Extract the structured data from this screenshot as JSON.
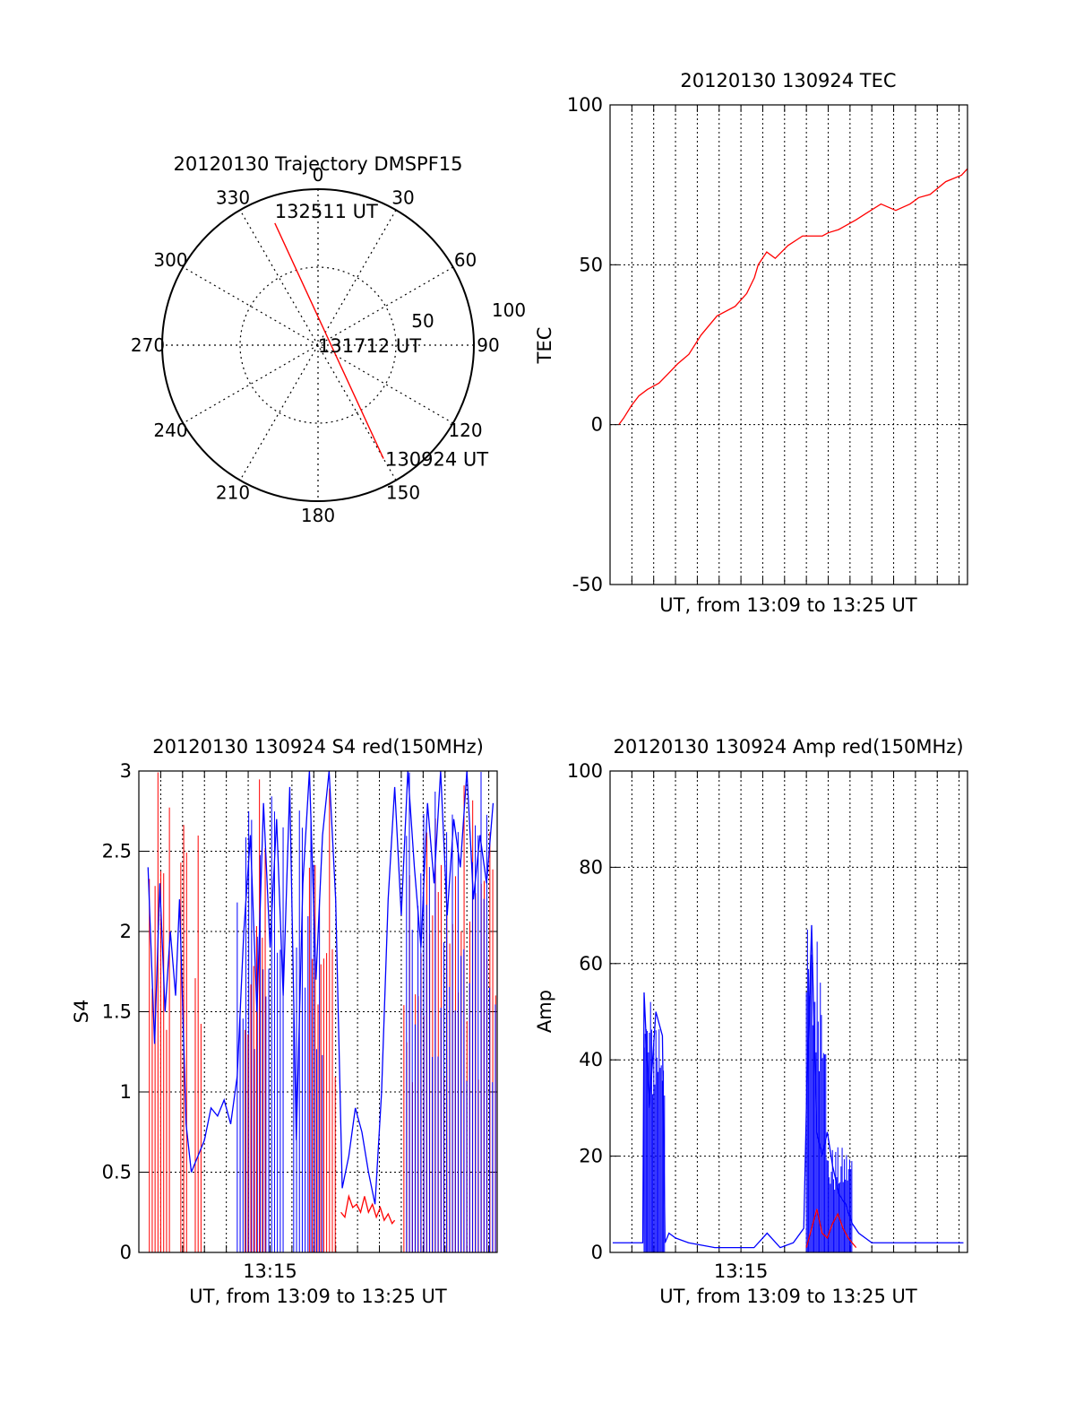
{
  "colors": {
    "red": "#ff0000",
    "blue": "#0000ff",
    "axis": "#000000",
    "grid": "#000000"
  },
  "chart_data": [
    {
      "id": "trajectory",
      "type": "polar",
      "title": "20120130 Trajectory DMSPF15",
      "azimuth_ticks": [
        "0",
        "30",
        "60",
        "90",
        "120",
        "150",
        "180",
        "210",
        "240",
        "270",
        "300",
        "330"
      ],
      "radial_tick_labels": [
        "50",
        "100"
      ],
      "rlim": [
        0,
        100
      ],
      "grid": true,
      "series": [
        {
          "color": "red",
          "points": [
            {
              "az": 340.5,
              "r": 83
            },
            {
              "az": 150,
              "r": 84
            }
          ]
        }
      ],
      "annotations": [
        {
          "text": "132511 UT",
          "az": 340.5,
          "r": 83
        },
        {
          "text": "131712 UT",
          "az": 0,
          "r": 0
        },
        {
          "text": "130924 UT",
          "az": 150,
          "r": 84
        }
      ]
    },
    {
      "id": "tec",
      "type": "line",
      "title": "20120130 130924 TEC",
      "xlabel": "UT, from 13:09 to 13:25 UT",
      "ylabel": "TEC",
      "xlim": [
        13.15,
        13.4231
      ],
      "ylim": [
        -50,
        100
      ],
      "yticks": [
        "-50",
        "0",
        "50",
        "100"
      ],
      "grid": true,
      "series": [
        {
          "color": "red",
          "x": [
            13.1567,
            13.1603,
            13.1664,
            13.172,
            13.1785,
            13.1874,
            13.1946,
            13.2016,
            13.2102,
            13.2195,
            13.2317,
            13.2456,
            13.2544,
            13.2603,
            13.2632,
            13.2697,
            13.2762,
            13.2859,
            13.2971,
            13.3122,
            13.3166,
            13.3246,
            13.3377,
            13.3453,
            13.357,
            13.3683,
            13.3792,
            13.3858,
            13.3945,
            13.4065,
            13.4185,
            13.423
          ],
          "y": [
            0,
            2,
            6,
            9,
            11,
            13,
            16,
            19,
            22,
            28,
            34,
            37,
            41,
            46,
            50,
            54,
            52,
            56,
            59,
            59,
            60,
            61,
            64,
            66,
            69,
            67,
            69,
            71,
            72,
            76,
            78,
            80
          ]
        }
      ]
    },
    {
      "id": "s4",
      "type": "line",
      "title": "20120130 130924 S4 red(150MHz)",
      "xlabel": "UT, from 13:09 to 13:25 UT",
      "ylabel": "S4",
      "xlim": [
        13.15,
        13.4231
      ],
      "ylim": [
        0,
        3
      ],
      "xticks": [
        "13:15"
      ],
      "xtick_values": [
        13.25
      ],
      "yticks": [
        "0",
        "0.5",
        "1",
        "1.5",
        "2",
        "2.5",
        "3"
      ],
      "grid": true,
      "series": [
        {
          "color": "blue",
          "x": [
            13.157,
            13.162,
            13.166,
            13.17,
            13.174,
            13.178,
            13.181,
            13.186,
            13.19,
            13.195,
            13.2,
            13.205,
            13.21,
            13.215,
            13.22,
            13.225,
            13.23,
            13.235,
            13.24,
            13.245,
            13.25,
            13.255,
            13.26,
            13.265,
            13.27,
            13.275,
            13.28,
            13.285,
            13.29,
            13.295,
            13.3,
            13.305,
            13.31,
            13.315,
            13.32,
            13.325,
            13.33,
            13.335,
            13.34,
            13.345,
            13.35,
            13.355,
            13.36,
            13.365,
            13.37,
            13.375,
            13.38,
            13.385,
            13.39,
            13.395,
            13.4,
            13.405,
            13.41,
            13.415,
            13.42
          ],
          "y": [
            2.4,
            1.3,
            2.3,
            1.5,
            2.0,
            1.6,
            2.2,
            0.8,
            0.5,
            0.6,
            0.7,
            0.9,
            0.85,
            0.95,
            0.8,
            1.1,
            2.0,
            2.6,
            1.5,
            2.8,
            1.9,
            2.7,
            1.6,
            2.9,
            0.7,
            2.3,
            3.0,
            1.7,
            2.6,
            3.0,
            2.2,
            0.4,
            0.6,
            0.9,
            0.75,
            0.5,
            0.3,
            1.0,
            2.2,
            2.9,
            2.1,
            3.0,
            2.4,
            1.9,
            2.8,
            2.3,
            3.0,
            2.1,
            2.7,
            2.4,
            3.0,
            2.2,
            2.6,
            2.3,
            2.8
          ]
        },
        {
          "color": "red",
          "x": [
            13.304,
            13.307,
            13.31,
            13.313,
            13.316,
            13.319,
            13.322,
            13.325,
            13.328,
            13.331,
            13.334,
            13.337,
            13.34,
            13.343,
            13.345
          ],
          "y": [
            0.25,
            0.22,
            0.35,
            0.28,
            0.3,
            0.25,
            0.35,
            0.25,
            0.3,
            0.22,
            0.28,
            0.2,
            0.24,
            0.18,
            0.2
          ]
        }
      ],
      "spike_bands": [
        {
          "color": "red",
          "x_start": 13.158,
          "x_end": 13.175
        },
        {
          "color": "red",
          "x_start": 13.182,
          "x_end": 13.188
        },
        {
          "color": "red",
          "x_start": 13.193,
          "x_end": 13.199
        },
        {
          "color": "blue",
          "x_start": 13.225,
          "x_end": 13.26
        },
        {
          "color": "red",
          "x_start": 13.231,
          "x_end": 13.248
        },
        {
          "color": "blue",
          "x_start": 13.268,
          "x_end": 13.29
        },
        {
          "color": "red",
          "x_start": 13.28,
          "x_end": 13.3
        },
        {
          "color": "red",
          "x_start": 13.352,
          "x_end": 13.4231
        },
        {
          "color": "blue",
          "x_start": 13.354,
          "x_end": 13.4231
        }
      ]
    },
    {
      "id": "amp",
      "type": "line",
      "title": "20120130 130924 Amp red(150MHz)",
      "xlabel": "UT, from 13:09 to 13:25 UT",
      "ylabel": "Amp",
      "xlim": [
        13.15,
        13.4231
      ],
      "ylim": [
        0,
        100
      ],
      "xticks": [
        "13:15"
      ],
      "xtick_values": [
        13.25
      ],
      "yticks": [
        "0",
        "20",
        "40",
        "60",
        "80",
        "100"
      ],
      "grid": true,
      "series": [
        {
          "color": "blue",
          "x": [
            13.152,
            13.17,
            13.175,
            13.176,
            13.18,
            13.185,
            13.19,
            13.192,
            13.195,
            13.2,
            13.21,
            13.23,
            13.26,
            13.27,
            13.28,
            13.29,
            13.298,
            13.3,
            13.304,
            13.306,
            13.308,
            13.312,
            13.316,
            13.32,
            13.325,
            13.33,
            13.335,
            13.34,
            13.35,
            13.37,
            13.4,
            13.42
          ],
          "y": [
            2,
            2,
            2,
            54,
            30,
            50,
            45,
            2,
            4,
            3,
            2,
            1,
            1,
            4,
            1,
            2,
            5,
            30,
            68,
            45,
            25,
            20,
            25,
            18,
            12,
            10,
            6,
            4,
            2,
            2,
            2,
            2
          ]
        },
        {
          "color": "red",
          "x": [
            13.3,
            13.304,
            13.308,
            13.312,
            13.316,
            13.32,
            13.324,
            13.328,
            13.332,
            13.338
          ],
          "y": [
            1,
            5,
            9,
            4,
            3,
            6,
            8,
            5,
            3,
            1
          ]
        }
      ],
      "spike_bands": [
        {
          "color": "blue",
          "x_start": 13.176,
          "x_end": 13.192,
          "y_max": 54
        },
        {
          "color": "blue",
          "x_start": 13.3,
          "x_end": 13.315,
          "y_max": 68
        },
        {
          "color": "blue",
          "x_start": 13.315,
          "x_end": 13.335,
          "y_max": 22
        }
      ]
    }
  ]
}
